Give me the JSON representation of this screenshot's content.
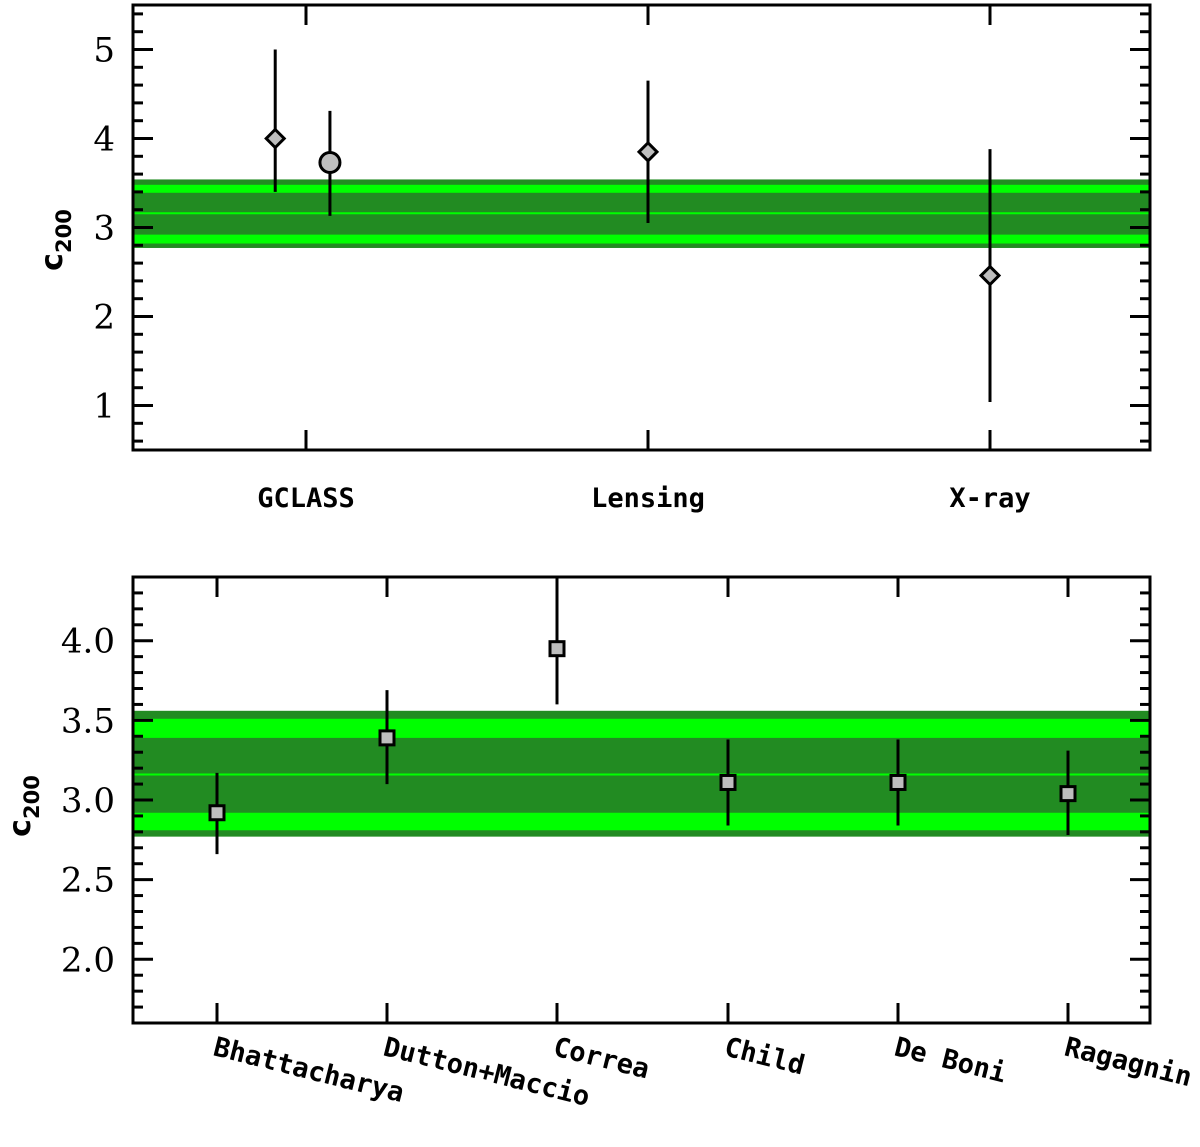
{
  "colors": {
    "band_outer": "#228B22",
    "band_inner": "#00FF00",
    "marker_fill": "#BEBEBE",
    "axis": "#000000"
  },
  "chart_data": [
    {
      "type": "scatter",
      "title": "",
      "xlabel": "",
      "ylabel": {
        "base": "c",
        "sub": "200"
      },
      "categories": [
        "GCLASS",
        "Lensing",
        "X-ray"
      ],
      "ylim": [
        0.5,
        5.5
      ],
      "yticks": [
        "1",
        "2",
        "3",
        "4",
        "5"
      ],
      "band": {
        "center": 3.16,
        "inner": [
          2.92,
          3.39
        ],
        "mid": [
          2.82,
          3.48
        ],
        "outer": [
          2.77,
          3.54
        ]
      },
      "series": [
        {
          "marker": "diamond",
          "points": [
            {
              "category": "GCLASS",
              "offset": -0.09,
              "y": 4.0,
              "err": [
                3.4,
                5.0
              ]
            },
            {
              "category": "Lensing",
              "offset": 0.0,
              "y": 3.85,
              "err": [
                3.05,
                4.65
              ]
            },
            {
              "category": "X-ray",
              "offset": 0.0,
              "y": 2.46,
              "err": [
                1.04,
                3.88
              ]
            }
          ]
        },
        {
          "marker": "circle",
          "points": [
            {
              "category": "GCLASS",
              "offset": 0.07,
              "y": 3.73,
              "err": [
                3.13,
                4.31
              ]
            }
          ]
        }
      ],
      "grid": false
    },
    {
      "type": "scatter",
      "title": "",
      "xlabel": "",
      "ylabel": {
        "base": "c",
        "sub": "200"
      },
      "categories": [
        "Bhattacharya",
        "Dutton+Maccio",
        "Correa",
        "Child",
        "De Boni",
        "Ragagnin"
      ],
      "ylim": [
        1.6,
        4.4
      ],
      "yticks": [
        "2.0",
        "2.5",
        "3.0",
        "3.5",
        "4.0"
      ],
      "band": {
        "center": 3.16,
        "inner": [
          2.92,
          3.39
        ],
        "mid": [
          2.81,
          3.51
        ],
        "outer": [
          2.77,
          3.56
        ]
      },
      "series": [
        {
          "marker": "square",
          "points": [
            {
              "category": "Bhattacharya",
              "offset": 0.0,
              "y": 2.92,
              "err": [
                2.66,
                3.17
              ]
            },
            {
              "category": "Dutton+Maccio",
              "offset": 0.0,
              "y": 3.39,
              "err": [
                3.1,
                3.69
              ]
            },
            {
              "category": "Correa",
              "offset": 0.0,
              "y": 3.95,
              "err": [
                3.6,
                4.3
              ]
            },
            {
              "category": "Child",
              "offset": 0.0,
              "y": 3.11,
              "err": [
                2.84,
                3.38
              ]
            },
            {
              "category": "De Boni",
              "offset": 0.0,
              "y": 3.11,
              "err": [
                2.84,
                3.38
              ]
            },
            {
              "category": "Ragagnin",
              "offset": 0.0,
              "y": 3.04,
              "err": [
                2.78,
                3.31
              ]
            }
          ]
        }
      ],
      "grid": false
    }
  ]
}
